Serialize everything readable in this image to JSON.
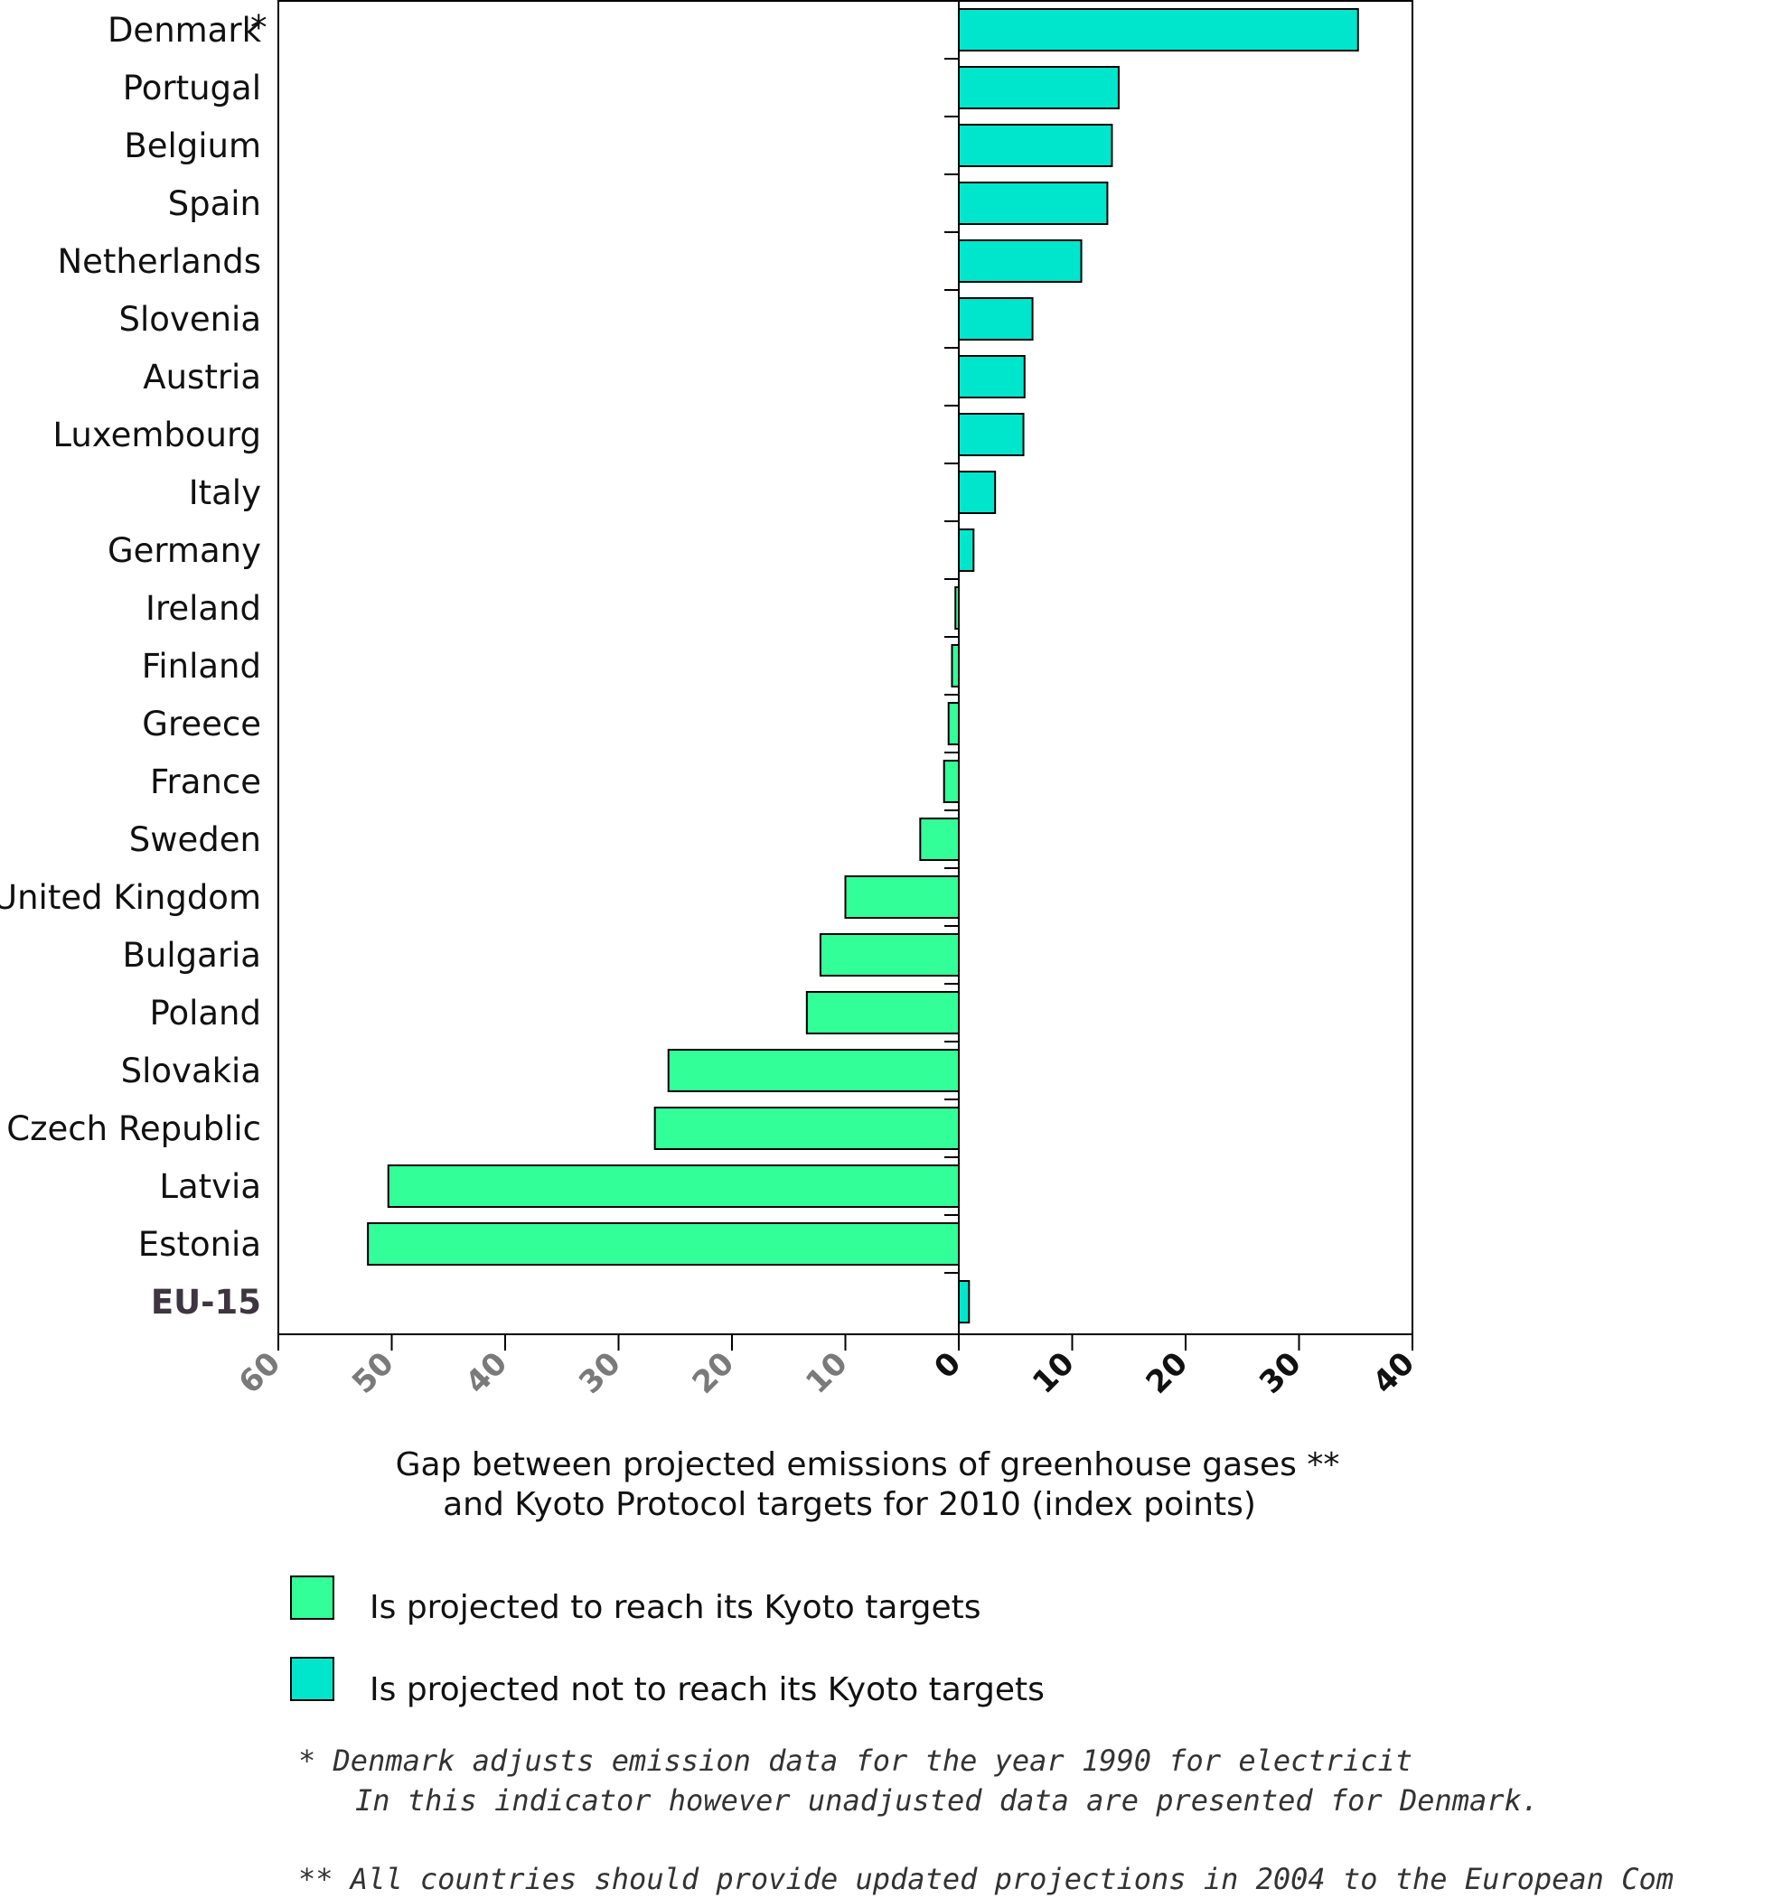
{
  "chart_data": {
    "type": "bar",
    "orientation": "horizontal",
    "categories": [
      "Denmark",
      "Portugal",
      "Belgium",
      "Spain",
      "Netherlands",
      "Slovenia",
      "Austria",
      "Luxembourg",
      "Italy",
      "Germany",
      "Ireland",
      "Finland",
      "Greece",
      "France",
      "Sweden",
      "United Kingdom",
      "Bulgaria",
      "Poland",
      "Slovakia",
      "Czech Republic",
      "Latvia",
      "Estonia",
      "EU-15"
    ],
    "values": [
      35.2,
      14.1,
      13.5,
      13.1,
      10.8,
      6.5,
      5.8,
      5.7,
      3.2,
      1.3,
      -0.3,
      -0.6,
      -0.9,
      -1.3,
      -3.4,
      -10.0,
      -12.2,
      -13.4,
      -25.6,
      -26.8,
      -50.3,
      -52.1,
      0.9
    ],
    "reach_target": [
      false,
      false,
      false,
      false,
      false,
      false,
      false,
      false,
      false,
      false,
      true,
      true,
      true,
      true,
      true,
      true,
      true,
      true,
      true,
      true,
      true,
      true,
      false
    ],
    "bold_categories": [
      "EU-15"
    ],
    "marked_categories": {
      "Denmark": "*"
    },
    "xlim": [
      -60,
      40
    ],
    "ticks": [
      -60,
      -50,
      -40,
      -30,
      -20,
      -10,
      0,
      10,
      20,
      30,
      40
    ],
    "tick_labels": [
      "60",
      "50",
      "40",
      "30",
      "20",
      "10",
      "0",
      "10",
      "20",
      "30",
      "40"
    ],
    "xlabel_line1": "Gap between projected emissions of greenhouse gases **",
    "xlabel_line2": "and Kyoto Protocol targets for 2010 (index points)",
    "legend": [
      {
        "label": "Is projected to reach its Kyoto targets",
        "color": "#33ff99"
      },
      {
        "label": "Is projected not to reach its Kyoto targets",
        "color": "#00e6cc"
      }
    ],
    "colors": {
      "reach": "#33ff99",
      "not_reach": "#00e6cc",
      "outline": "#000000"
    },
    "grid": false,
    "footnotes": [
      "* Denmark adjusts emission data for the year 1990 for electricit",
      "In this indicator however unadjusted data are presented for Denmark.",
      "** All countries should provide updated projections in 2004 to the European Com"
    ]
  }
}
